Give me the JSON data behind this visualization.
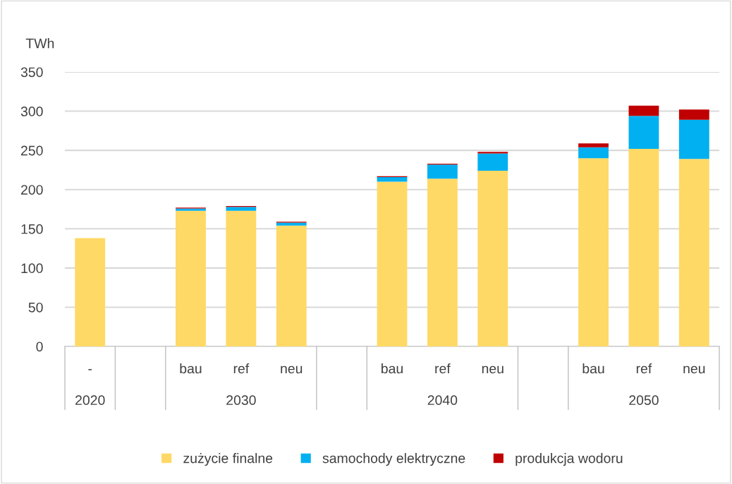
{
  "chart_data": {
    "type": "bar",
    "stacked": true,
    "ylabel": "TWh",
    "categories": [
      "-",
      null,
      "bau",
      "ref",
      "neu",
      null,
      "bau",
      "ref",
      "neu",
      null,
      "bau",
      "ref",
      "neu"
    ],
    "annotations": [
      "2020",
      "2030",
      "2040",
      "2050"
    ],
    "series": [
      {
        "name": "zużycie finalne",
        "color": "#ffd966",
        "values": [
          138,
          null,
          173,
          173,
          154,
          null,
          210,
          214,
          224,
          null,
          240,
          252,
          239
        ]
      },
      {
        "name": "samochody elektryczne",
        "color": "#00b0f0",
        "values": [
          null,
          null,
          3,
          5,
          4,
          null,
          6,
          18,
          22,
          null,
          14,
          42,
          50
        ]
      },
      {
        "name": "produkcja wodoru",
        "color": "#c00000",
        "values": [
          null,
          null,
          1,
          1,
          1,
          null,
          1,
          1,
          2,
          null,
          5,
          13,
          13
        ]
      }
    ],
    "ylim": [
      0,
      350
    ],
    "yticks": [
      0,
      50,
      100,
      150,
      200,
      250,
      300,
      350
    ],
    "grid": "y",
    "legend": "bottom"
  }
}
